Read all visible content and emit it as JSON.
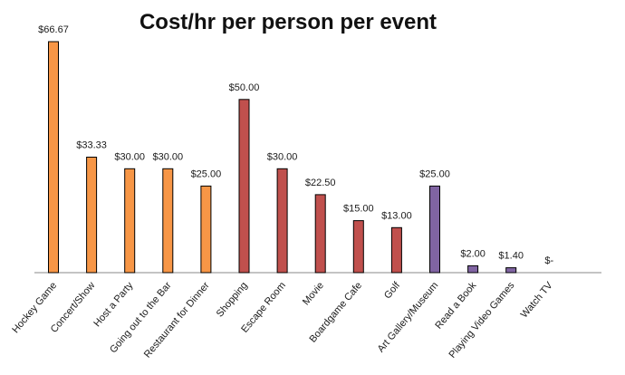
{
  "chart_data": {
    "type": "bar",
    "title": "Cost/hr per person per event",
    "xlabel": "",
    "ylabel": "",
    "ylim": [
      0,
      70
    ],
    "grid": false,
    "legend": "none",
    "categories": [
      "Hockey Game",
      "Concert/Show",
      "Host a Party",
      "Going out to the Bar",
      "Restaurant for Dinner",
      "Shopping",
      "Escape Room",
      "Movie",
      "Boardgame Cafe",
      "Golf",
      "Art Gallery/Museum",
      "Read a Book",
      "Playing Video Games",
      "Watch TV"
    ],
    "values": [
      66.67,
      33.33,
      30.0,
      30.0,
      25.0,
      50.0,
      30.0,
      22.5,
      15.0,
      13.0,
      25.0,
      2.0,
      1.4,
      0
    ],
    "value_labels": [
      "$66.67",
      "$33.33",
      "$30.00",
      "$30.00",
      "$25.00",
      "$50.00",
      "$30.00",
      "$22.50",
      "$15.00",
      "$13.00",
      "$25.00",
      "$2.00",
      "$1.40",
      "$-"
    ],
    "bar_colors": [
      "#F79646",
      "#F79646",
      "#F79646",
      "#F79646",
      "#F79646",
      "#C0504D",
      "#C0504D",
      "#C0504D",
      "#C0504D",
      "#C0504D",
      "#8064A2",
      "#8064A2",
      "#8064A2",
      "#8064A2"
    ],
    "bar_outline": "#000000",
    "axis_color": "#888888"
  }
}
